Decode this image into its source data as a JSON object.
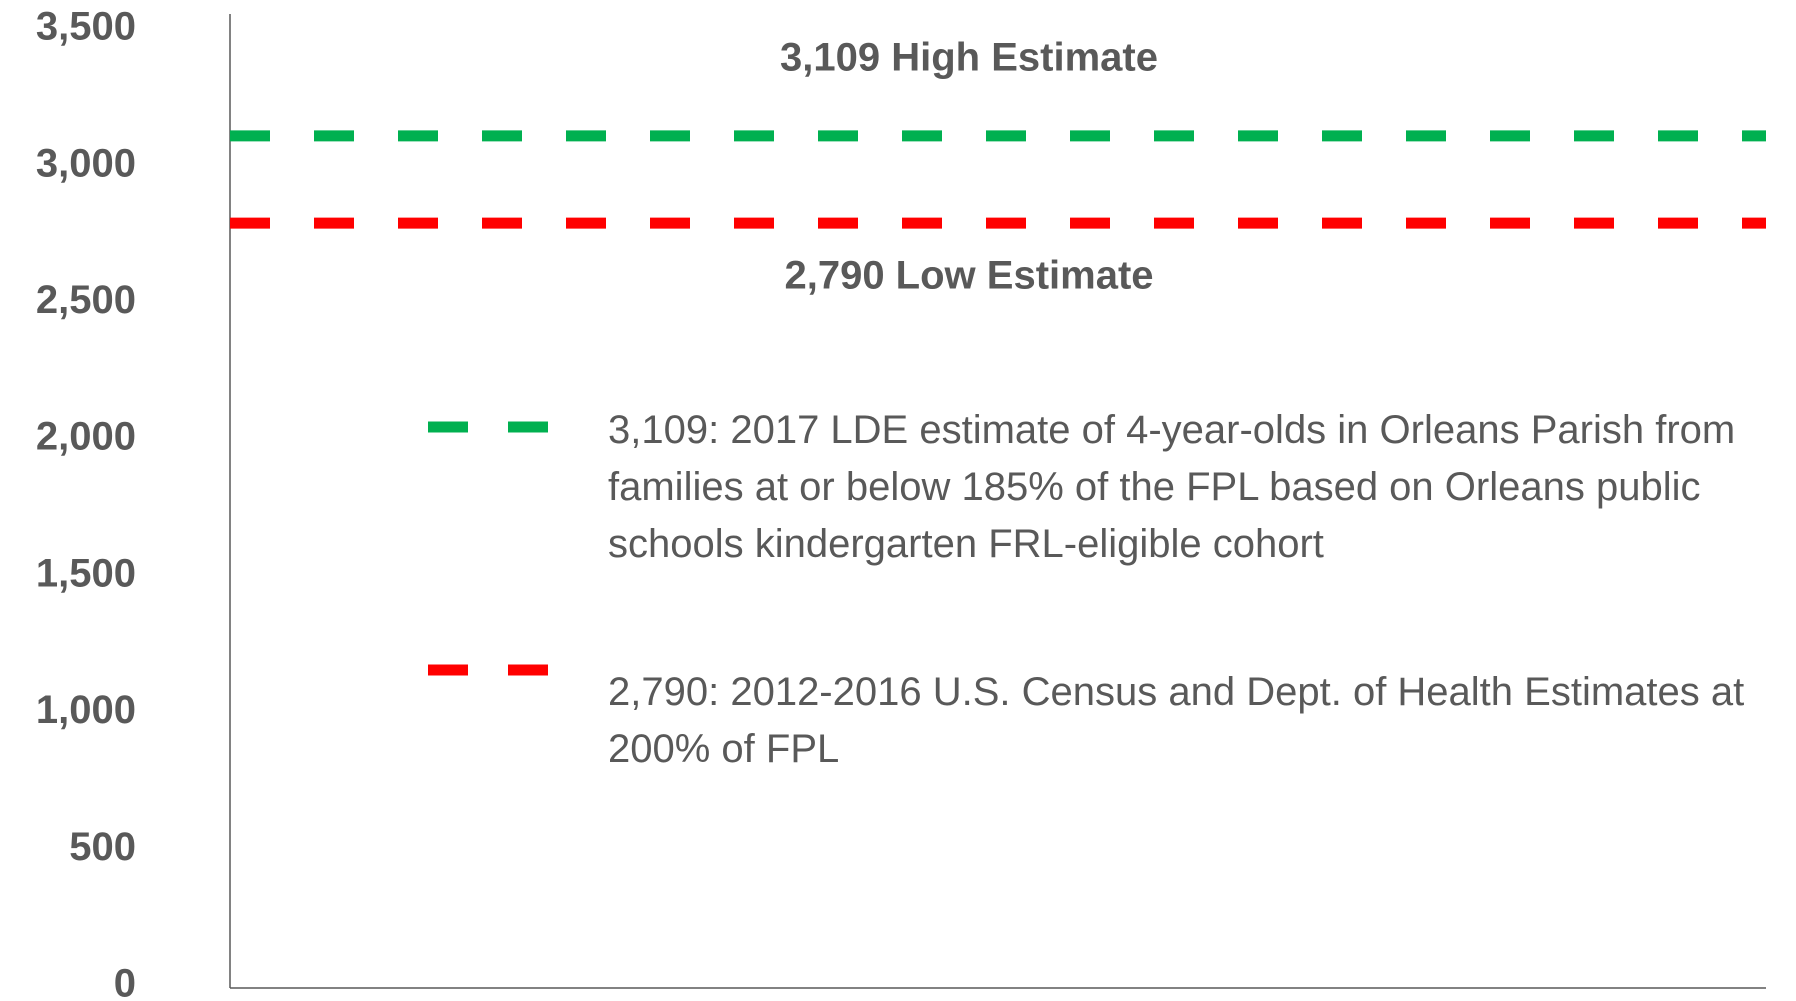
{
  "chart_data": {
    "type": "line",
    "ylim": [
      0,
      3500
    ],
    "yticks": [
      0,
      500,
      {
        "value": 1000,
        "label": "1,000"
      },
      {
        "value": 1500,
        "label": "1,500"
      },
      {
        "value": 2000,
        "label": "2,000"
      },
      {
        "value": 2500,
        "label": "2,500"
      },
      {
        "value": 3000,
        "label": "3,000"
      },
      {
        "value": 3500,
        "label": "3,500"
      }
    ],
    "annotations": [
      "3,109 High Estimate",
      "2,790 Low Estimate"
    ],
    "series": [
      {
        "name": "3,109: 2017 LDE estimate of 4-year-olds in Orleans Parish from families at or below 185% of the FPL based on Orleans public schools kindergarten FRL-eligible cohort",
        "color": "#00b050",
        "value": 3109
      },
      {
        "name": "2,790: 2012-2016 U.S. Census and Dept. of Health Estimates at 200% of FPL",
        "color": "#ff0000",
        "value": 2790
      }
    ]
  }
}
